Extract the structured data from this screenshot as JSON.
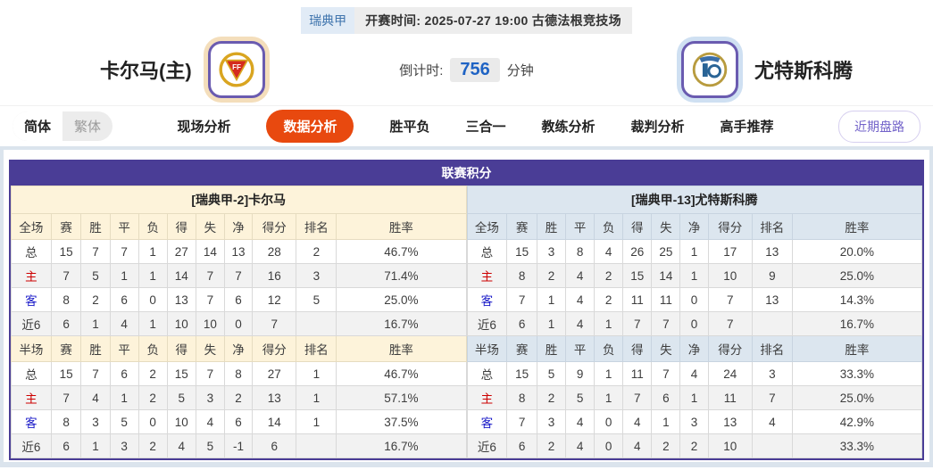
{
  "header": {
    "league_badge": "瑞典甲",
    "kickoff_info": "开赛时间: 2025-07-27 19:00  古德法根竞技场",
    "home_team": "卡尔马(主)",
    "away_team": "尤特斯科腾",
    "countdown_label": "倒计时:",
    "countdown_value": "756",
    "countdown_unit": "分钟"
  },
  "nav": {
    "lang_simplified": "简体",
    "lang_traditional": "繁体",
    "tabs": [
      "现场分析",
      "数据分析",
      "胜平负",
      "三合一",
      "教练分析",
      "裁判分析",
      "高手推荐"
    ],
    "active_tab": "数据分析",
    "recent_button": "近期盘路"
  },
  "table": {
    "title": "联赛积分",
    "label_colors": {
      "主": "#cc0000",
      "客": "#1a1ac8"
    },
    "left": {
      "section_title": "[瑞典甲-2]卡尔马",
      "full_header": [
        "全场",
        "赛",
        "胜",
        "平",
        "负",
        "得",
        "失",
        "净",
        "得分",
        "排名",
        "胜率"
      ],
      "full_rows": [
        [
          "总",
          "15",
          "7",
          "7",
          "1",
          "27",
          "14",
          "13",
          "28",
          "2",
          "46.7%"
        ],
        [
          "主",
          "7",
          "5",
          "1",
          "1",
          "14",
          "7",
          "7",
          "16",
          "3",
          "71.4%"
        ],
        [
          "客",
          "8",
          "2",
          "6",
          "0",
          "13",
          "7",
          "6",
          "12",
          "5",
          "25.0%"
        ],
        [
          "近6",
          "6",
          "1",
          "4",
          "1",
          "10",
          "10",
          "0",
          "7",
          "",
          "16.7%"
        ]
      ],
      "half_header": [
        "半场",
        "赛",
        "胜",
        "平",
        "负",
        "得",
        "失",
        "净",
        "得分",
        "排名",
        "胜率"
      ],
      "half_rows": [
        [
          "总",
          "15",
          "7",
          "6",
          "2",
          "15",
          "7",
          "8",
          "27",
          "1",
          "46.7%"
        ],
        [
          "主",
          "7",
          "4",
          "1",
          "2",
          "5",
          "3",
          "2",
          "13",
          "1",
          "57.1%"
        ],
        [
          "客",
          "8",
          "3",
          "5",
          "0",
          "10",
          "4",
          "6",
          "14",
          "1",
          "37.5%"
        ],
        [
          "近6",
          "6",
          "1",
          "3",
          "2",
          "4",
          "5",
          "-1",
          "6",
          "",
          "16.7%"
        ]
      ]
    },
    "right": {
      "section_title": "[瑞典甲-13]尤特斯科腾",
      "full_header": [
        "全场",
        "赛",
        "胜",
        "平",
        "负",
        "得",
        "失",
        "净",
        "得分",
        "排名",
        "胜率"
      ],
      "full_rows": [
        [
          "总",
          "15",
          "3",
          "8",
          "4",
          "26",
          "25",
          "1",
          "17",
          "13",
          "20.0%"
        ],
        [
          "主",
          "8",
          "2",
          "4",
          "2",
          "15",
          "14",
          "1",
          "10",
          "9",
          "25.0%"
        ],
        [
          "客",
          "7",
          "1",
          "4",
          "2",
          "11",
          "11",
          "0",
          "7",
          "13",
          "14.3%"
        ],
        [
          "近6",
          "6",
          "1",
          "4",
          "1",
          "7",
          "7",
          "0",
          "7",
          "",
          "16.7%"
        ]
      ],
      "half_header": [
        "半场",
        "赛",
        "胜",
        "平",
        "负",
        "得",
        "失",
        "净",
        "得分",
        "排名",
        "胜率"
      ],
      "half_rows": [
        [
          "总",
          "15",
          "5",
          "9",
          "1",
          "11",
          "7",
          "4",
          "24",
          "3",
          "33.3%"
        ],
        [
          "主",
          "8",
          "2",
          "5",
          "1",
          "7",
          "6",
          "1",
          "11",
          "7",
          "25.0%"
        ],
        [
          "客",
          "7",
          "3",
          "4",
          "0",
          "4",
          "1",
          "3",
          "13",
          "4",
          "42.9%"
        ],
        [
          "近6",
          "6",
          "2",
          "4",
          "0",
          "4",
          "2",
          "2",
          "10",
          "",
          "33.3%"
        ]
      ]
    }
  },
  "colors": {
    "accent_purple": "#4a3d96",
    "active_tab_orange": "#e8490f",
    "countdown_blue": "#1f63c4",
    "home_label_red": "#cc0000",
    "away_label_blue": "#1a1ac8",
    "left_section_bg": "#fdf3da",
    "right_section_bg": "#dce6ef"
  }
}
